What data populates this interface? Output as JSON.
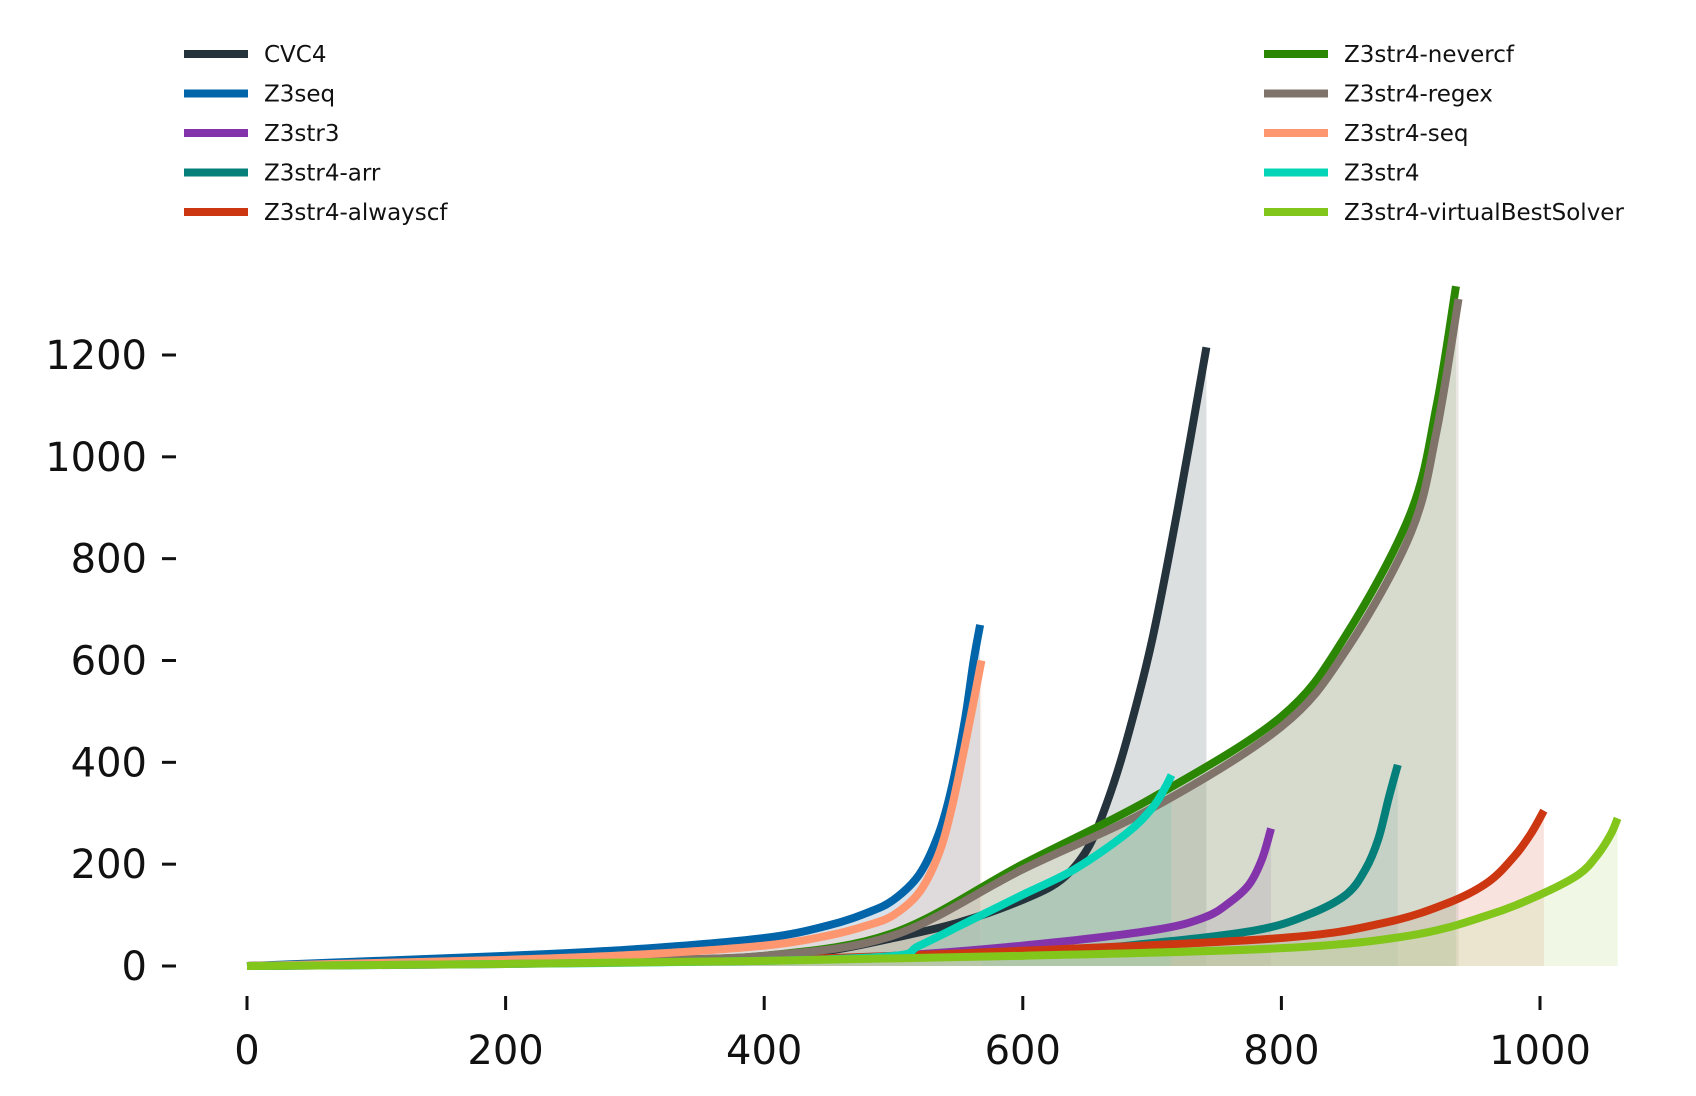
{
  "chart_data": {
    "type": "line",
    "title": "",
    "xlabel": "",
    "ylabel": "",
    "xlim": [
      -15,
      1095
    ],
    "ylim": [
      -25,
      1360
    ],
    "grid": false,
    "x_ticks": [
      0,
      200,
      400,
      600,
      800,
      1000
    ],
    "y_ticks": [
      0,
      200,
      400,
      600,
      800,
      1000,
      1200
    ],
    "x_tick_labels": [
      "0",
      "200",
      "400",
      "600",
      "800",
      "1000"
    ],
    "y_tick_labels": [
      "0",
      "200",
      "400",
      "600",
      "800",
      "1000",
      "1200"
    ],
    "legend": {
      "placement": "top",
      "left_column": [
        "CVC4",
        "Z3seq",
        "Z3str3",
        "Z3str4-arr",
        "Z3str4-alwayscf"
      ],
      "right_column": [
        "Z3str4-nevercf",
        "Z3str4-regex",
        "Z3str4-seq",
        "Z3str4",
        "Z3str4-virtualBestSolver"
      ]
    },
    "series": [
      {
        "name": "CVC4",
        "color": "#25333d",
        "fill_color": "#7f8b91",
        "x": [
          0,
          100,
          200,
          300,
          400,
          450,
          500,
          550,
          600,
          630,
          650,
          665,
          680,
          700,
          720,
          742
        ],
        "y": [
          0,
          3,
          6,
          10,
          18,
          30,
          55,
          85,
          130,
          170,
          230,
          320,
          440,
          640,
          900,
          1215
        ]
      },
      {
        "name": "Z3seq",
        "color": "#0264a9",
        "fill_color": "#6a97ba",
        "x": [
          0,
          100,
          200,
          300,
          400,
          450,
          480,
          500,
          520,
          535,
          545,
          555,
          562,
          567
        ],
        "y": [
          0,
          10,
          20,
          33,
          55,
          80,
          105,
          130,
          180,
          260,
          350,
          480,
          600,
          670
        ]
      },
      {
        "name": "Z3str3",
        "color": "#8434ab",
        "fill_color": "#b58fcc",
        "x": [
          0,
          200,
          400,
          500,
          600,
          700,
          740,
          760,
          775,
          785,
          792
        ],
        "y": [
          0,
          4,
          12,
          20,
          40,
          70,
          95,
          125,
          160,
          210,
          270
        ]
      },
      {
        "name": "Z3str4-arr",
        "color": "#047f7a",
        "fill_color": "#8ec2bf",
        "x": [
          0,
          200,
          400,
          600,
          700,
          780,
          820,
          850,
          865,
          875,
          883,
          890
        ],
        "y": [
          0,
          5,
          12,
          25,
          45,
          70,
          100,
          140,
          190,
          250,
          330,
          395
        ]
      },
      {
        "name": "Z3str4-alwayscf",
        "color": "#cc3611",
        "fill_color": "#e89a8c",
        "x": [
          0,
          200,
          400,
          600,
          800,
          880,
          930,
          960,
          980,
          993,
          1003
        ],
        "y": [
          0,
          5,
          12,
          30,
          55,
          85,
          125,
          165,
          215,
          260,
          305
        ]
      },
      {
        "name": "Z3str4-nevercf",
        "color": "#2b8703",
        "fill_color": "#9cbd8a",
        "x": [
          0,
          100,
          200,
          300,
          400,
          500,
          600,
          700,
          800,
          850,
          900,
          920,
          935
        ],
        "y": [
          0,
          3,
          7,
          12,
          20,
          65,
          200,
          330,
          490,
          650,
          890,
          1100,
          1335
        ]
      },
      {
        "name": "Z3str4-regex",
        "color": "#807369",
        "fill_color": "#b3aea0",
        "x": [
          0,
          100,
          200,
          300,
          400,
          500,
          600,
          700,
          800,
          850,
          900,
          920,
          937
        ],
        "y": [
          0,
          3,
          7,
          12,
          20,
          60,
          190,
          310,
          470,
          620,
          850,
          1050,
          1310
        ]
      },
      {
        "name": "Z3str4-seq",
        "color": "#fe976f",
        "fill_color": "#f7c9b3",
        "x": [
          0,
          100,
          200,
          300,
          400,
          450,
          480,
          500,
          520,
          535,
          545,
          555,
          562,
          568
        ],
        "y": [
          0,
          6,
          12,
          22,
          40,
          60,
          80,
          100,
          145,
          220,
          310,
          430,
          520,
          600
        ]
      },
      {
        "name": "Z3str4",
        "color": "#04d4b7",
        "fill_color": "#7fc7b0",
        "x": [
          0,
          200,
          400,
          500,
          520,
          560,
          600,
          640,
          680,
          700,
          710,
          715
        ],
        "y": [
          0,
          4,
          10,
          20,
          40,
          90,
          140,
          190,
          260,
          310,
          350,
          375
        ]
      },
      {
        "name": "Z3str4-virtualBestSolver",
        "color": "#82c51b",
        "fill_color": "#c8e6a3",
        "x": [
          0,
          200,
          400,
          600,
          800,
          900,
          960,
          1000,
          1030,
          1045,
          1055,
          1060
        ],
        "y": [
          0,
          4,
          10,
          20,
          35,
          60,
          100,
          140,
          180,
          220,
          260,
          290
        ]
      }
    ]
  }
}
